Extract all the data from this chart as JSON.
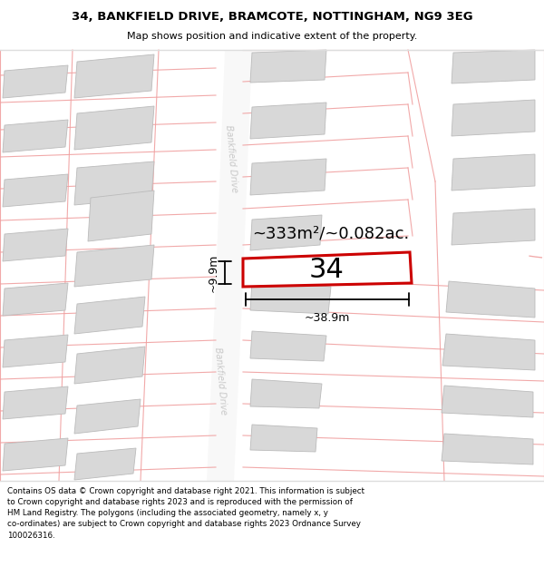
{
  "title_line1": "34, BANKFIELD DRIVE, BRAMCOTE, NOTTINGHAM, NG9 3EG",
  "title_line2": "Map shows position and indicative extent of the property.",
  "copyright_text": "Contains OS data © Crown copyright and database right 2021. This information is subject\nto Crown copyright and database rights 2023 and is reproduced with the permission of\nHM Land Registry. The polygons (including the associated geometry, namely x, y\nco-ordinates) are subject to Crown copyright and database rights 2023 Ordnance Survey\n100026316.",
  "area_label": "~333m²/~0.082ac.",
  "width_label": "~38.9m",
  "height_label": "~9.9m",
  "number_label": "34",
  "map_bg": "#ffffff",
  "building_color": "#d8d8d8",
  "building_edge": "#bbbbbb",
  "boundary_line_color": "#f0a0a0",
  "plot_edge_color": "#cc0000",
  "road_label_color": "#c8c8c8",
  "separator_color": "#dddddd"
}
